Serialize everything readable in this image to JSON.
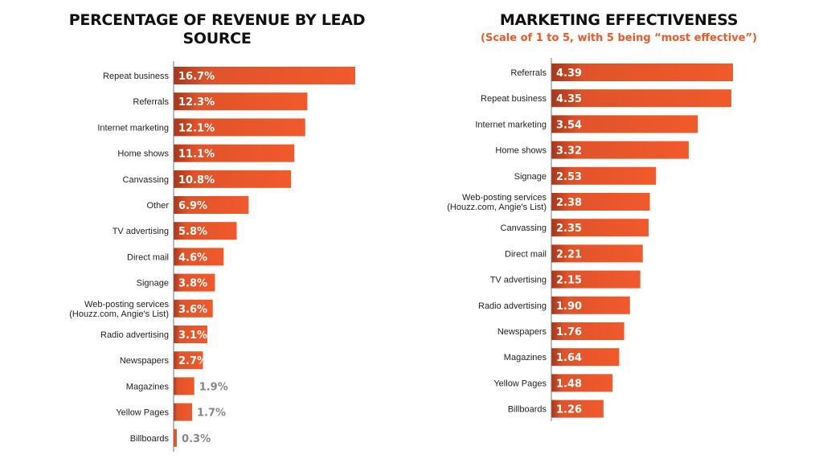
{
  "colors": {
    "bar_start": "#a8361b",
    "bar_end": "#f15a2b",
    "subtitle": "#f05a28",
    "axis": "#777777",
    "outside_label": "#888888"
  },
  "chart_data": [
    {
      "type": "bar",
      "orientation": "horizontal",
      "title": "PERCENTAGE OF REVENUE BY LEAD SOURCE",
      "subtitle": "",
      "xlabel": "",
      "ylabel": "",
      "unit": "%",
      "xlim": [
        0,
        16.7
      ],
      "grid": false,
      "legend": "none",
      "categories": [
        [
          "Repeat business"
        ],
        [
          "Referrals"
        ],
        [
          "Internet marketing"
        ],
        [
          "Home shows"
        ],
        [
          "Canvassing"
        ],
        [
          "Other"
        ],
        [
          "TV advertising"
        ],
        [
          "Direct mail"
        ],
        [
          "Signage"
        ],
        [
          "Web-posting services",
          "(Houzz.com, Angie's List)"
        ],
        [
          "Radio advertising"
        ],
        [
          "Newspapers"
        ],
        [
          "Magazines"
        ],
        [
          "Yellow Pages"
        ],
        [
          "Billboards"
        ]
      ],
      "values": [
        16.7,
        12.3,
        12.1,
        11.1,
        10.8,
        6.9,
        5.8,
        4.6,
        3.8,
        3.6,
        3.1,
        2.7,
        1.9,
        1.7,
        0.3
      ],
      "labels": [
        "16.7%",
        "12.3%",
        "12.1%",
        "11.1%",
        "10.8%",
        "6.9%",
        "5.8%",
        "4.6%",
        "3.8%",
        "3.6%",
        "3.1%",
        "2.7%",
        "1.9%",
        "1.7%",
        "0.3%"
      ],
      "label_outside": [
        false,
        false,
        false,
        false,
        false,
        false,
        false,
        false,
        false,
        false,
        false,
        false,
        true,
        true,
        true
      ]
    },
    {
      "type": "bar",
      "orientation": "horizontal",
      "title": "MARKETING EFFECTIVENESS",
      "subtitle": "(Scale of 1 to 5, with 5 being “most effective”)",
      "xlabel": "",
      "ylabel": "",
      "unit": "score",
      "xlim": [
        0,
        4.39
      ],
      "grid": false,
      "legend": "none",
      "categories": [
        [
          "Referrals"
        ],
        [
          "Repeat business"
        ],
        [
          "Internet marketing"
        ],
        [
          "Home shows"
        ],
        [
          "Signage"
        ],
        [
          "Web-posting services",
          "(Houzz.com, Angie's List)"
        ],
        [
          "Canvassing"
        ],
        [
          "Direct mail"
        ],
        [
          "TV advertising"
        ],
        [
          "Radio advertising"
        ],
        [
          "Newspapers"
        ],
        [
          "Magazines"
        ],
        [
          "Yellow Pages"
        ],
        [
          "Billboards"
        ]
      ],
      "values": [
        4.39,
        4.35,
        3.54,
        3.32,
        2.53,
        2.38,
        2.35,
        2.21,
        2.15,
        1.9,
        1.76,
        1.64,
        1.48,
        1.26
      ],
      "labels": [
        "4.39",
        "4.35",
        "3.54",
        "3.32",
        "2.53",
        "2.38",
        "2.35",
        "2.21",
        "2.15",
        "1.90",
        "1.76",
        "1.64",
        "1.48",
        "1.26"
      ],
      "label_outside": [
        false,
        false,
        false,
        false,
        false,
        false,
        false,
        false,
        false,
        false,
        false,
        false,
        false,
        false
      ]
    }
  ]
}
